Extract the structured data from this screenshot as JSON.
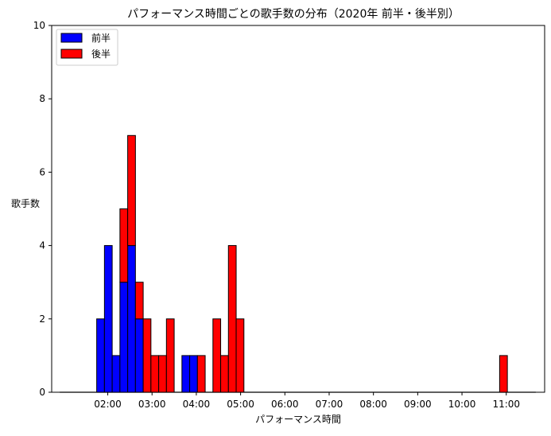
{
  "chart_data": {
    "type": "bar",
    "stacked": true,
    "title": "パフォーマンス時間ごとの歌手数の分布（2020年 前半・後半別）",
    "xlabel": "パフォーマンス時間",
    "ylabel": "歌手数",
    "ylim": [
      0,
      10
    ],
    "yticks": [
      0,
      2,
      4,
      6,
      8,
      10
    ],
    "xlim_seconds": [
      44,
      712
    ],
    "xticks": [
      {
        "label": "02:00",
        "value": 120
      },
      {
        "label": "03:00",
        "value": 180
      },
      {
        "label": "04:00",
        "value": 240
      },
      {
        "label": "05:00",
        "value": 300
      },
      {
        "label": "06:00",
        "value": 360
      },
      {
        "label": "07:00",
        "value": 420
      },
      {
        "label": "08:00",
        "value": 480
      },
      {
        "label": "09:00",
        "value": 540
      },
      {
        "label": "10:00",
        "value": 600
      },
      {
        "label": "11:00",
        "value": 660
      }
    ],
    "bin_width_seconds": 10.5,
    "legend_position": "top-left",
    "series": [
      {
        "name": "前半",
        "color": "#0000ff",
        "bins": [
          {
            "start": 105,
            "value": 2
          },
          {
            "start": 115.5,
            "value": 4
          },
          {
            "start": 126,
            "value": 1
          },
          {
            "start": 136.5,
            "value": 3
          },
          {
            "start": 147,
            "value": 4
          },
          {
            "start": 157.5,
            "value": 2
          },
          {
            "start": 220.5,
            "value": 1
          },
          {
            "start": 231,
            "value": 1
          }
        ]
      },
      {
        "name": "後半",
        "color": "#ff0000",
        "bins": [
          {
            "start": 136.5,
            "value": 2
          },
          {
            "start": 147,
            "value": 3
          },
          {
            "start": 157.5,
            "value": 1
          },
          {
            "start": 168,
            "value": 2
          },
          {
            "start": 178.5,
            "value": 1
          },
          {
            "start": 189,
            "value": 1
          },
          {
            "start": 199.5,
            "value": 2
          },
          {
            "start": 241.5,
            "value": 1
          },
          {
            "start": 262.5,
            "value": 2
          },
          {
            "start": 273,
            "value": 1
          },
          {
            "start": 283.5,
            "value": 4
          },
          {
            "start": 294,
            "value": 2
          },
          {
            "start": 651,
            "value": 1
          }
        ]
      }
    ]
  }
}
